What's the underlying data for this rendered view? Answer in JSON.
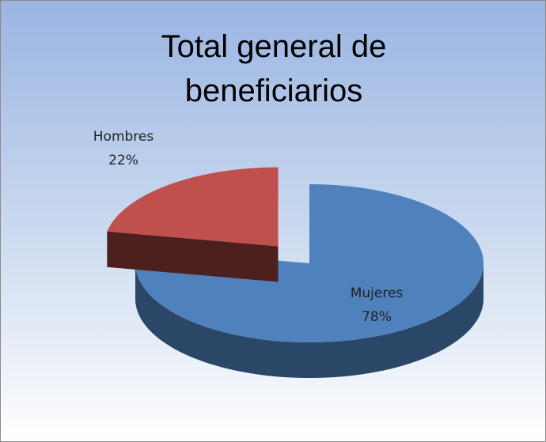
{
  "chart_data": {
    "type": "pie",
    "title": "Total general de beneficiarios",
    "categories": [
      "Mujeres",
      "Hombres"
    ],
    "values": [
      78,
      22
    ],
    "value_labels": [
      "78%",
      "22%"
    ],
    "colors": [
      "#4f81bd",
      "#c0504d"
    ]
  }
}
